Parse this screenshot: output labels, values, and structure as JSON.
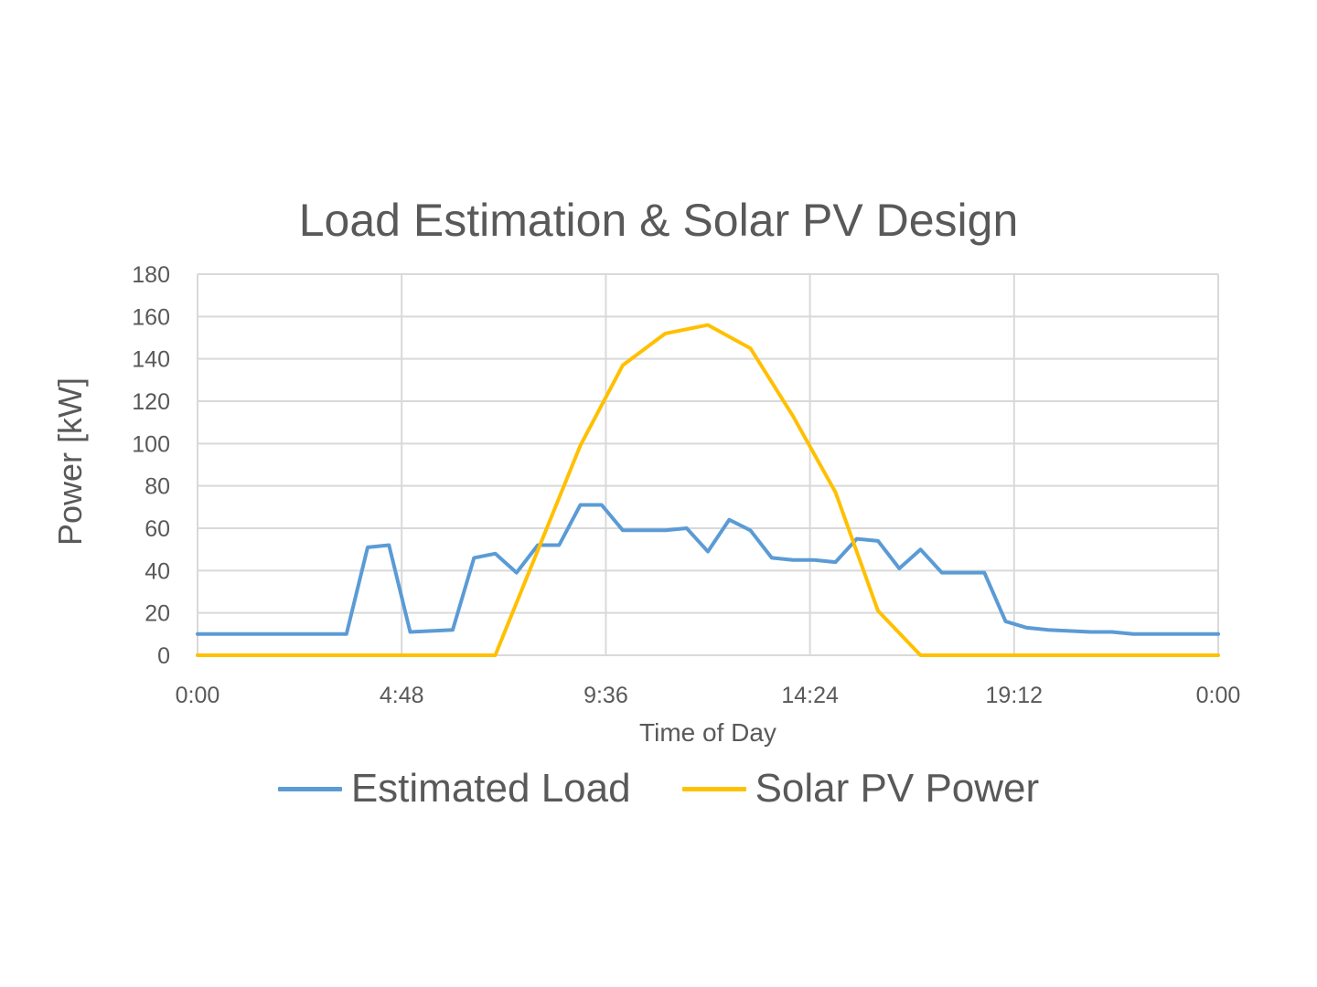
{
  "chart_data": {
    "type": "line",
    "title": "Load Estimation & Solar PV Design",
    "xlabel": "Time of Day",
    "ylabel": "Power  [kW]",
    "ylim": [
      0,
      180
    ],
    "y_ticks": [
      0,
      20,
      40,
      60,
      80,
      100,
      120,
      140,
      160,
      180
    ],
    "x_range_hours": [
      0,
      24
    ],
    "x_tick_hours": [
      0,
      4.8,
      9.6,
      14.4,
      19.2,
      24
    ],
    "x_tick_labels": [
      "0:00",
      "4:48",
      "9:36",
      "14:24",
      "19:12",
      "0:00"
    ],
    "grid": true,
    "legend_position": "bottom",
    "series": [
      {
        "name": "Estimated Load",
        "color": "#5B9BD5",
        "x_hours": [
          0,
          0.5,
          1,
          1.5,
          2,
          2.5,
          3,
          3.5,
          4,
          4.5,
          5,
          5.5,
          6,
          6.5,
          7,
          7.5,
          8,
          8.5,
          9,
          9.5,
          10,
          10.5,
          11,
          11.5,
          12,
          12.5,
          13,
          13.5,
          14,
          14.5,
          15,
          15.5,
          16,
          16.5,
          17,
          17.5,
          18,
          18.5,
          19,
          19.5,
          20,
          20.5,
          21,
          21.5,
          22,
          22.5,
          23,
          23.5,
          24
        ],
        "values": [
          10,
          10,
          10,
          10,
          10,
          10,
          10,
          10,
          51,
          52,
          11,
          11.5,
          12,
          46,
          48,
          39,
          52,
          52,
          71,
          71,
          59,
          59,
          59,
          60,
          49,
          64,
          59,
          46,
          45,
          45,
          44,
          55,
          54,
          41,
          50,
          39,
          39,
          39,
          16,
          13,
          12,
          11.5,
          11,
          11,
          10,
          10,
          10,
          10,
          10
        ]
      },
      {
        "name": "Solar PV Power",
        "color": "#FFC000",
        "x_hours": [
          0,
          7,
          9,
          10,
          11,
          12,
          13,
          14,
          15,
          16,
          17,
          24
        ],
        "values": [
          0,
          0,
          99,
          137,
          152,
          156,
          145,
          113,
          77,
          21,
          0,
          0
        ]
      }
    ]
  },
  "colors": {
    "grid": "#D9D9D9",
    "text": "#595959",
    "background": "#FFFFFF"
  }
}
